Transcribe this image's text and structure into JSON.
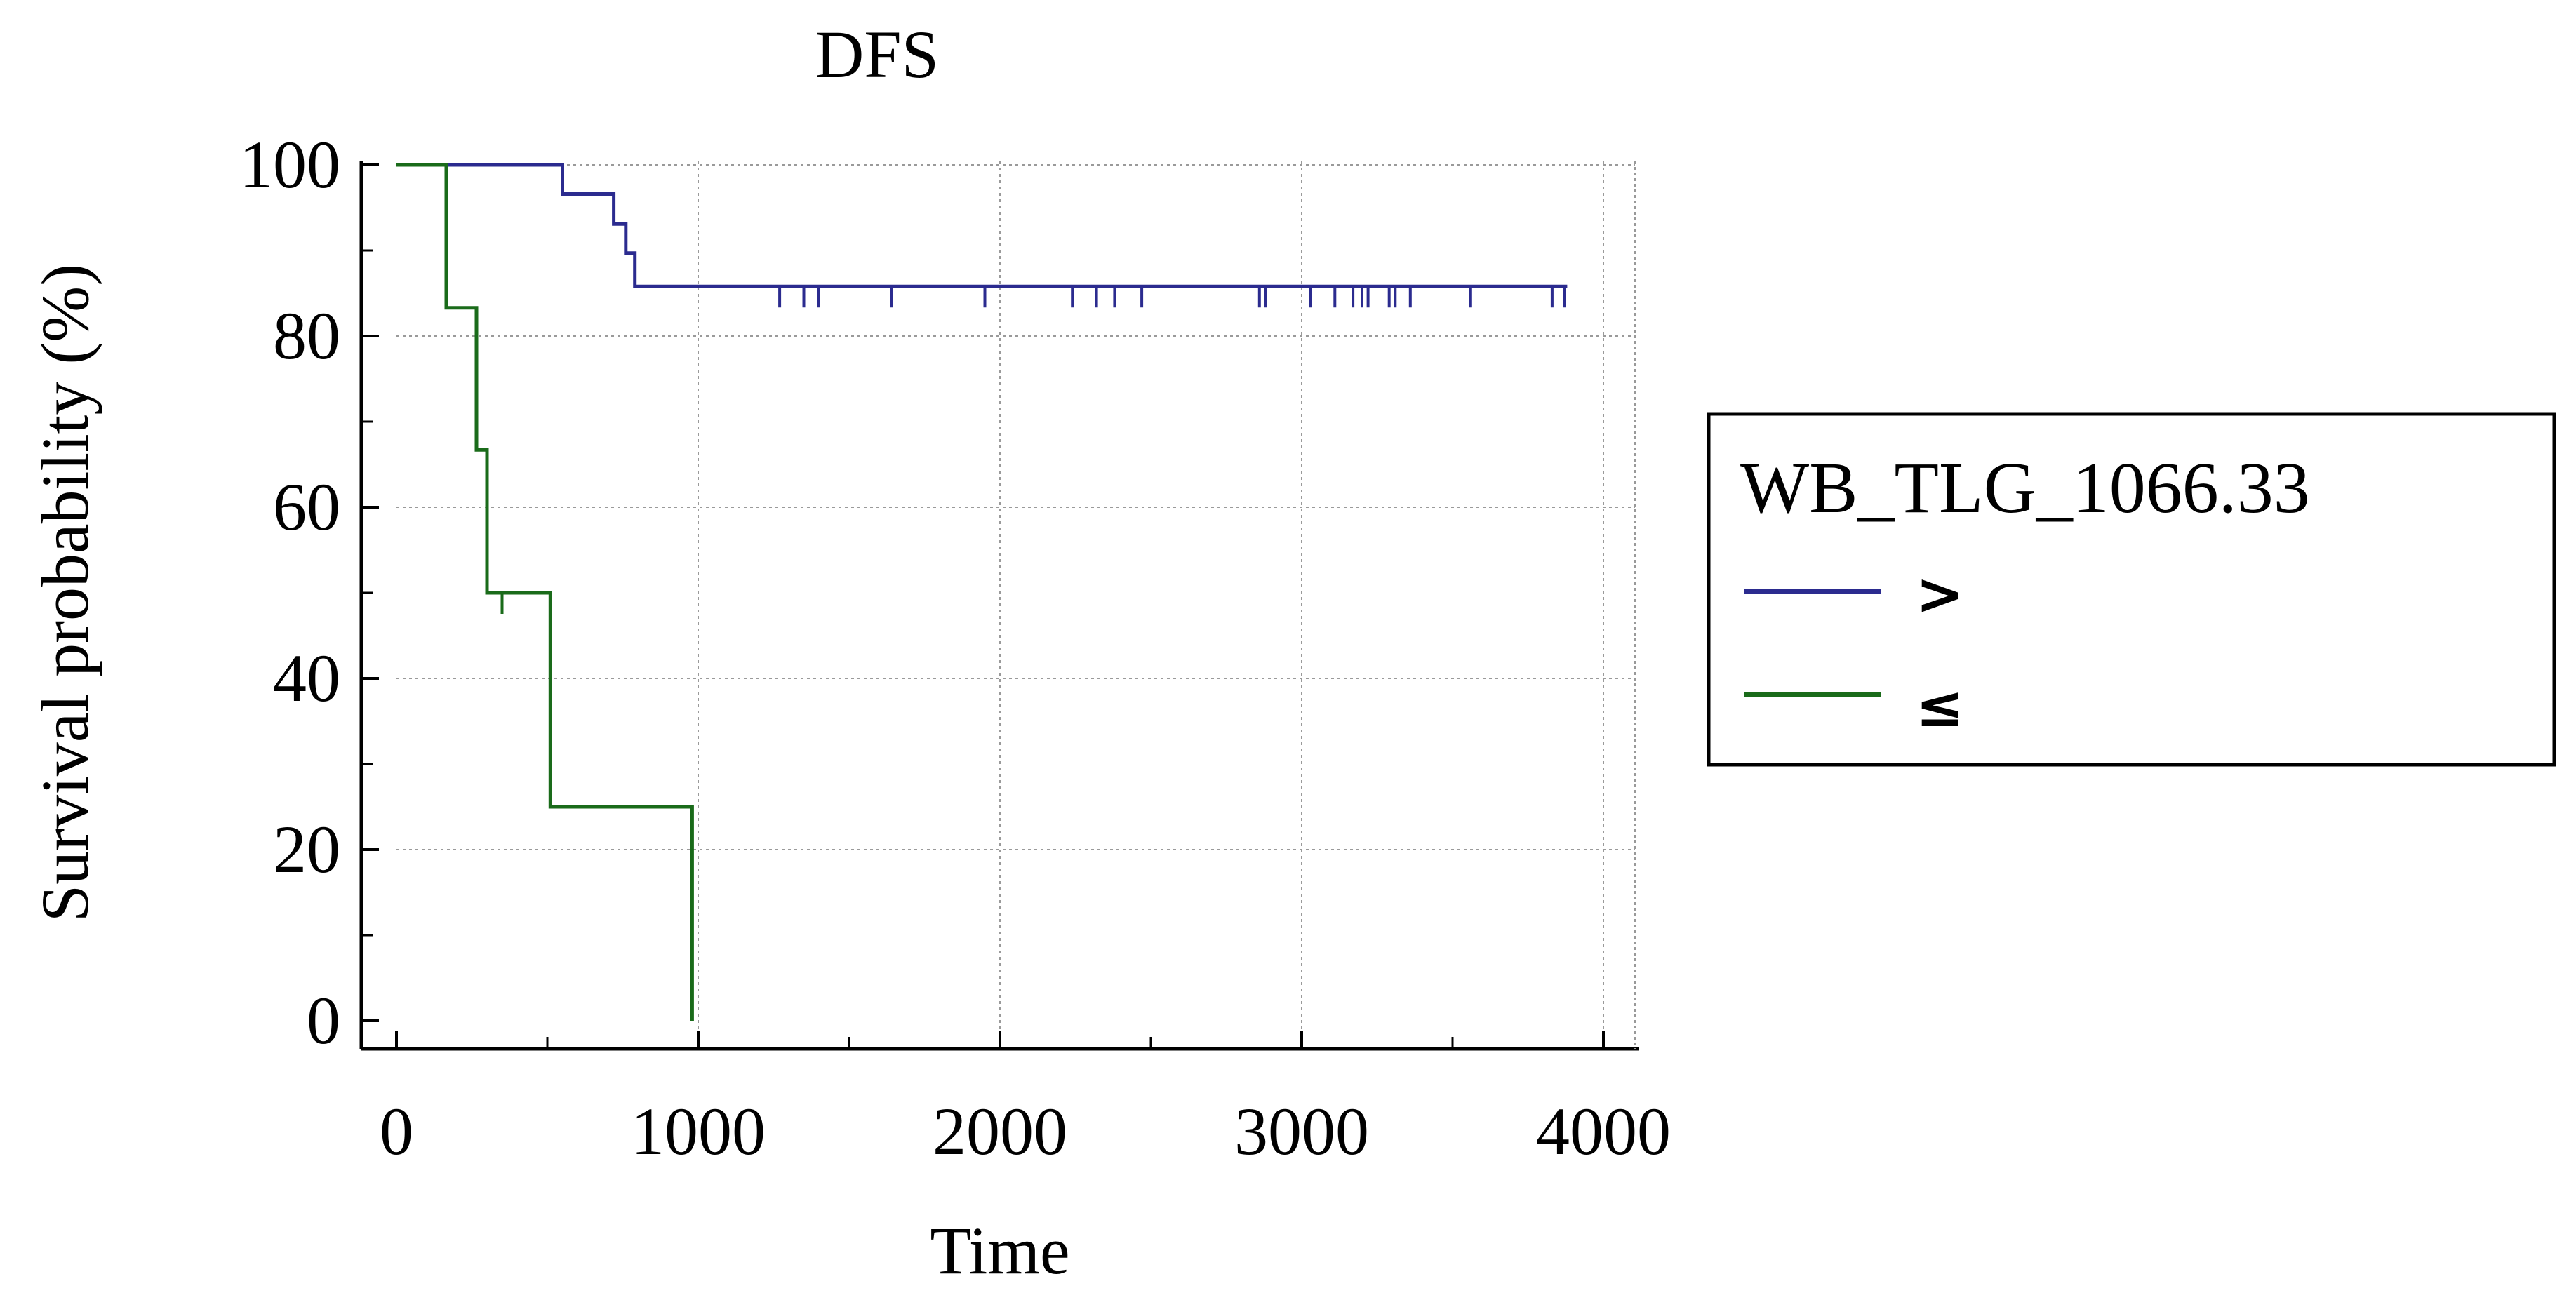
{
  "chart_data": {
    "type": "line",
    "step": true,
    "title": "DFS",
    "xlabel": "Time",
    "ylabel": "Survival probability (%)",
    "xlim": [
      0,
      4000
    ],
    "ylim": [
      0,
      100
    ],
    "x_ticks": [
      0,
      1000,
      2000,
      3000,
      4000
    ],
    "y_ticks": [
      0,
      20,
      40,
      60,
      80,
      100
    ],
    "grid": true,
    "legend": {
      "title": "WB_TLG_1066.33",
      "placement": "right",
      "entries": [
        ">",
        "≤"
      ]
    },
    "series": [
      {
        "name": ">",
        "color": "#2b2b8f",
        "steps": [
          [
            0,
            100
          ],
          [
            550,
            100
          ],
          [
            550,
            96.6
          ],
          [
            720,
            96.6
          ],
          [
            720,
            93.1
          ],
          [
            760,
            93.1
          ],
          [
            760,
            89.7
          ],
          [
            790,
            89.7
          ],
          [
            790,
            85.8
          ],
          [
            3880,
            85.8
          ]
        ],
        "censored": [
          [
            1270,
            85.8
          ],
          [
            1350,
            85.8
          ],
          [
            1400,
            85.8
          ],
          [
            1640,
            85.8
          ],
          [
            1950,
            85.8
          ],
          [
            2240,
            85.8
          ],
          [
            2320,
            85.8
          ],
          [
            2380,
            85.8
          ],
          [
            2470,
            85.8
          ],
          [
            2860,
            85.8
          ],
          [
            2880,
            85.8
          ],
          [
            3030,
            85.8
          ],
          [
            3110,
            85.8
          ],
          [
            3170,
            85.8
          ],
          [
            3200,
            85.8
          ],
          [
            3220,
            85.8
          ],
          [
            3290,
            85.8
          ],
          [
            3310,
            85.8
          ],
          [
            3360,
            85.8
          ],
          [
            3560,
            85.8
          ],
          [
            3830,
            85.8
          ],
          [
            3870,
            85.8
          ]
        ]
      },
      {
        "name": "≤",
        "color": "#1a6b1a",
        "steps": [
          [
            0,
            100
          ],
          [
            165,
            100
          ],
          [
            165,
            83.3
          ],
          [
            265,
            83.3
          ],
          [
            265,
            66.7
          ],
          [
            300,
            66.7
          ],
          [
            300,
            50
          ],
          [
            510,
            50
          ],
          [
            510,
            25
          ],
          [
            980,
            25
          ],
          [
            980,
            0
          ]
        ],
        "censored": [
          [
            350,
            50
          ]
        ]
      }
    ]
  }
}
